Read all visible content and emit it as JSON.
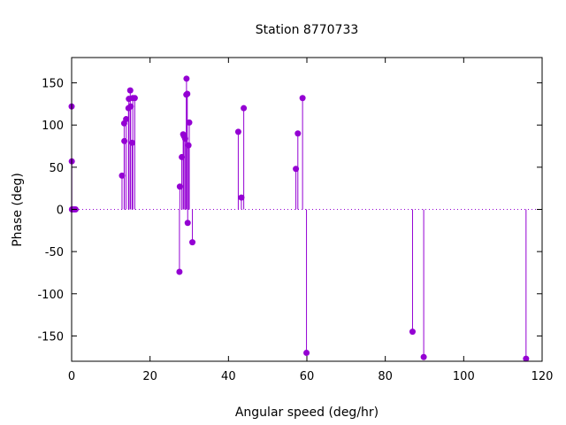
{
  "chart_data": {
    "type": "stem",
    "title": "Station 8770733",
    "xlabel": "Angular speed (deg/hr)",
    "ylabel": "Phase (deg)",
    "xlim": [
      0,
      120
    ],
    "ylim": [
      -180,
      180
    ],
    "xticks": [
      0,
      20,
      40,
      60,
      80,
      100,
      120
    ],
    "yticks": [
      -150,
      -100,
      -50,
      0,
      50,
      100,
      150
    ],
    "grid": false,
    "legend": "none",
    "baseline": 0,
    "color": "#9400d3",
    "points": [
      {
        "x": 0.0,
        "y": 122
      },
      {
        "x": 0.04,
        "y": 57
      },
      {
        "x": 0.08,
        "y": 0
      },
      {
        "x": 0.5,
        "y": 0
      },
      {
        "x": 0.6,
        "y": 0
      },
      {
        "x": 1.0,
        "y": 0
      },
      {
        "x": 12.85,
        "y": 40
      },
      {
        "x": 13.4,
        "y": 102
      },
      {
        "x": 13.45,
        "y": 81
      },
      {
        "x": 13.9,
        "y": 107
      },
      {
        "x": 14.5,
        "y": 120
      },
      {
        "x": 14.6,
        "y": 131
      },
      {
        "x": 14.95,
        "y": 141
      },
      {
        "x": 15.05,
        "y": 122
      },
      {
        "x": 15.45,
        "y": 79
      },
      {
        "x": 15.6,
        "y": 132
      },
      {
        "x": 16.1,
        "y": 132
      },
      {
        "x": 27.5,
        "y": -74
      },
      {
        "x": 27.6,
        "y": 27
      },
      {
        "x": 28.1,
        "y": 62
      },
      {
        "x": 28.45,
        "y": 89
      },
      {
        "x": 28.65,
        "y": 87
      },
      {
        "x": 28.95,
        "y": 84
      },
      {
        "x": 29.25,
        "y": 136
      },
      {
        "x": 29.3,
        "y": 155
      },
      {
        "x": 29.5,
        "y": 137
      },
      {
        "x": 29.6,
        "y": -16
      },
      {
        "x": 29.8,
        "y": 76
      },
      {
        "x": 30.0,
        "y": 103
      },
      {
        "x": 30.8,
        "y": -39
      },
      {
        "x": 42.5,
        "y": 92
      },
      {
        "x": 43.3,
        "y": 14
      },
      {
        "x": 43.9,
        "y": 120
      },
      {
        "x": 57.2,
        "y": 48
      },
      {
        "x": 57.7,
        "y": 90
      },
      {
        "x": 58.9,
        "y": 132
      },
      {
        "x": 59.9,
        "y": -170
      },
      {
        "x": 86.95,
        "y": -145
      },
      {
        "x": 89.8,
        "y": -175
      },
      {
        "x": 115.9,
        "y": -177
      }
    ]
  }
}
